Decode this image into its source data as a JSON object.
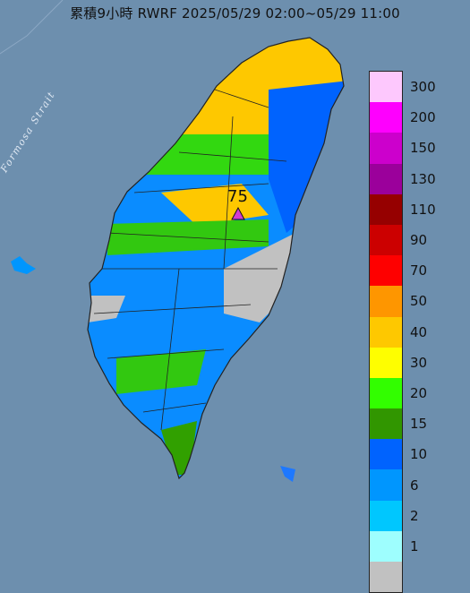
{
  "title": "累積9小時 RWRF 2025/05/29 02:00~05/29 11:00",
  "strait_label": "Formosa Strait",
  "max_marker": {
    "value": "75",
    "shape": "triangle",
    "color": "#d23cd2"
  },
  "legend": {
    "levels": [
      {
        "label": "300",
        "color": "#fdc8fd"
      },
      {
        "label": "200",
        "color": "#fe00fe"
      },
      {
        "label": "150",
        "color": "#cc00cc"
      },
      {
        "label": "130",
        "color": "#9b009b"
      },
      {
        "label": "110",
        "color": "#960000"
      },
      {
        "label": "90",
        "color": "#cc0000"
      },
      {
        "label": "70",
        "color": "#fe0000"
      },
      {
        "label": "50",
        "color": "#fe9600"
      },
      {
        "label": "40",
        "color": "#fec800"
      },
      {
        "label": "30",
        "color": "#fefe00"
      },
      {
        "label": "20",
        "color": "#32fe00"
      },
      {
        "label": "15",
        "color": "#319600"
      },
      {
        "label": "10",
        "color": "#0063fe"
      },
      {
        "label": "6",
        "color": "#0096fe"
      },
      {
        "label": "2",
        "color": "#00c7fe"
      },
      {
        "label": "1",
        "color": "#9efefe"
      },
      {
        "label": "",
        "color": "#c1c1c1"
      }
    ]
  },
  "colors": {
    "sea": "#6d8fae",
    "no_rain": "#c1c1c1"
  }
}
